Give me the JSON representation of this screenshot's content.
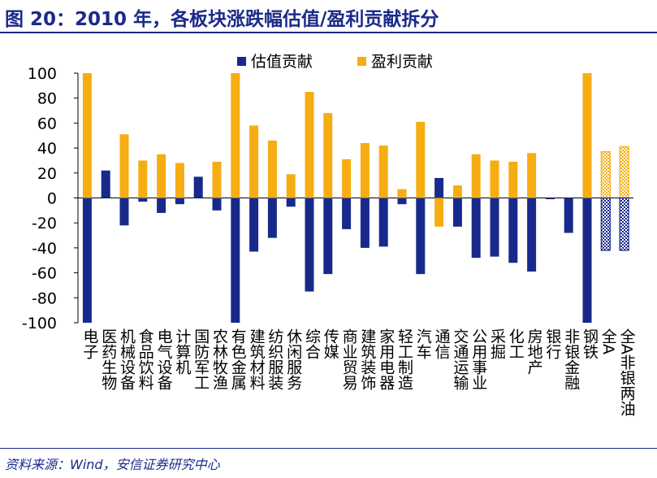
{
  "figure": {
    "title": "图 20：2010 年，各板块涨跌幅估值/盈利贡献拆分",
    "source": "资料来源：Wind，安信证券研究中心"
  },
  "colors": {
    "valuation": "#172a8c",
    "earnings": "#f6ad12",
    "title": "#1b2a8a"
  },
  "chart_data": {
    "type": "bar",
    "stacked": true,
    "legend_position": "top",
    "grid": false,
    "ylim": [
      -100,
      100
    ],
    "yticks": [
      100,
      80,
      60,
      40,
      20,
      0,
      -20,
      -40,
      -60,
      -80,
      -100
    ],
    "categories": [
      "电子",
      "医药生物",
      "机械设备",
      "食品饮料",
      "电气设备",
      "计算机",
      "国防军工",
      "农林牧渔",
      "有色金属",
      "建筑材料",
      "纺织服装",
      "休闲服务",
      "综合",
      "传媒",
      "商业贸易",
      "建筑装饰",
      "家用电器",
      "轻工制造",
      "汽车",
      "通信",
      "交通运输",
      "公用事业",
      "采掘",
      "化工",
      "房地产",
      "银行",
      "非银金融",
      "钢铁",
      "全A",
      "全A非银两油"
    ],
    "series": [
      {
        "name": "估值贡献",
        "values": [
          -100,
          22,
          -22,
          -3,
          -12,
          -5,
          17,
          -10,
          -100,
          -43,
          -32,
          -7,
          -75,
          -61,
          -25,
          -40,
          -39,
          -5,
          -61,
          16,
          -23,
          -48,
          -47,
          -52,
          -59,
          -1,
          -28,
          -100,
          -42,
          -42
        ]
      },
      {
        "name": "盈利贡献",
        "values": [
          100,
          8,
          51,
          30,
          35,
          28,
          4,
          29,
          100,
          58,
          46,
          19,
          85,
          68,
          31,
          44,
          42,
          7,
          61,
          -23,
          10,
          35,
          30,
          29,
          36,
          0,
          0,
          100,
          37,
          41
        ]
      }
    ],
    "hatched_categories": [
      "全A",
      "全A非银两油"
    ]
  }
}
